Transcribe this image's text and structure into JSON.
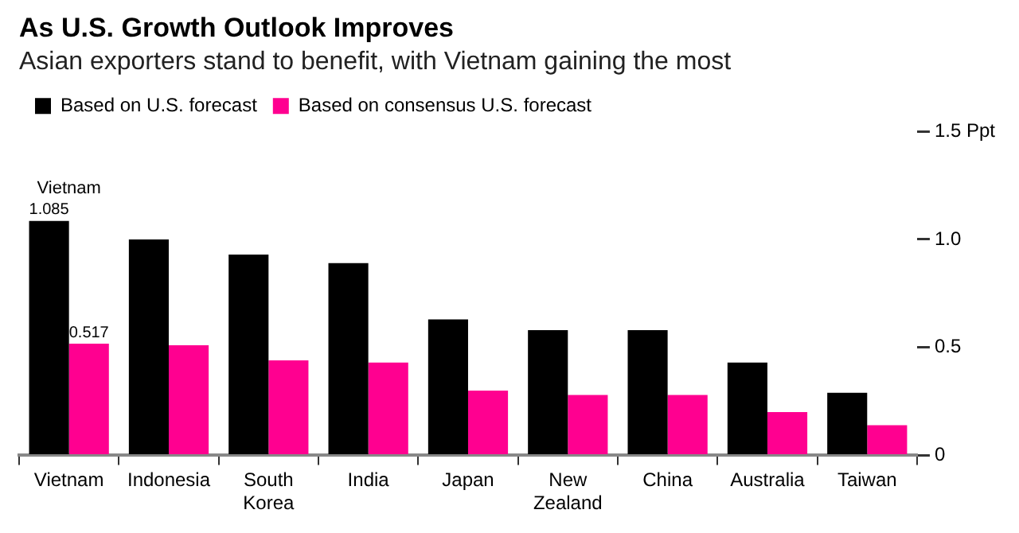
{
  "chart_data": {
    "type": "bar",
    "title": "As U.S. Growth Outlook Improves",
    "subtitle": "Asian exporters stand to benefit, with Vietnam gaining the most",
    "categories": [
      "Vietnam",
      "Indonesia",
      "South Korea",
      "India",
      "Japan",
      "New Zealand",
      "China",
      "Australia",
      "Taiwan"
    ],
    "series": [
      {
        "name": "Based on U.S. forecast",
        "color": "#000000",
        "values": [
          1.085,
          1.0,
          0.93,
          0.89,
          0.63,
          0.58,
          0.58,
          0.43,
          0.29
        ],
        "value_labels": [
          "1.085",
          null,
          null,
          null,
          null,
          null,
          null,
          null,
          null
        ]
      },
      {
        "name": "Based on consensus U.S. forecast",
        "color": "#ff0090",
        "values": [
          0.517,
          0.51,
          0.44,
          0.43,
          0.3,
          0.28,
          0.28,
          0.2,
          0.14
        ],
        "value_labels": [
          "0.517",
          null,
          null,
          null,
          null,
          null,
          null,
          null,
          null
        ]
      }
    ],
    "annotations": [
      {
        "text": "Vietnam",
        "x": "Vietnam",
        "y": 1.085
      }
    ],
    "ylim": [
      0,
      1.5
    ],
    "yticks": [
      0,
      0.5,
      {
        "value": 1,
        "label": "1.0"
      },
      {
        "value": 1.5,
        "label": "1.5 Ppt"
      }
    ],
    "grid": false,
    "legend": "top left"
  }
}
